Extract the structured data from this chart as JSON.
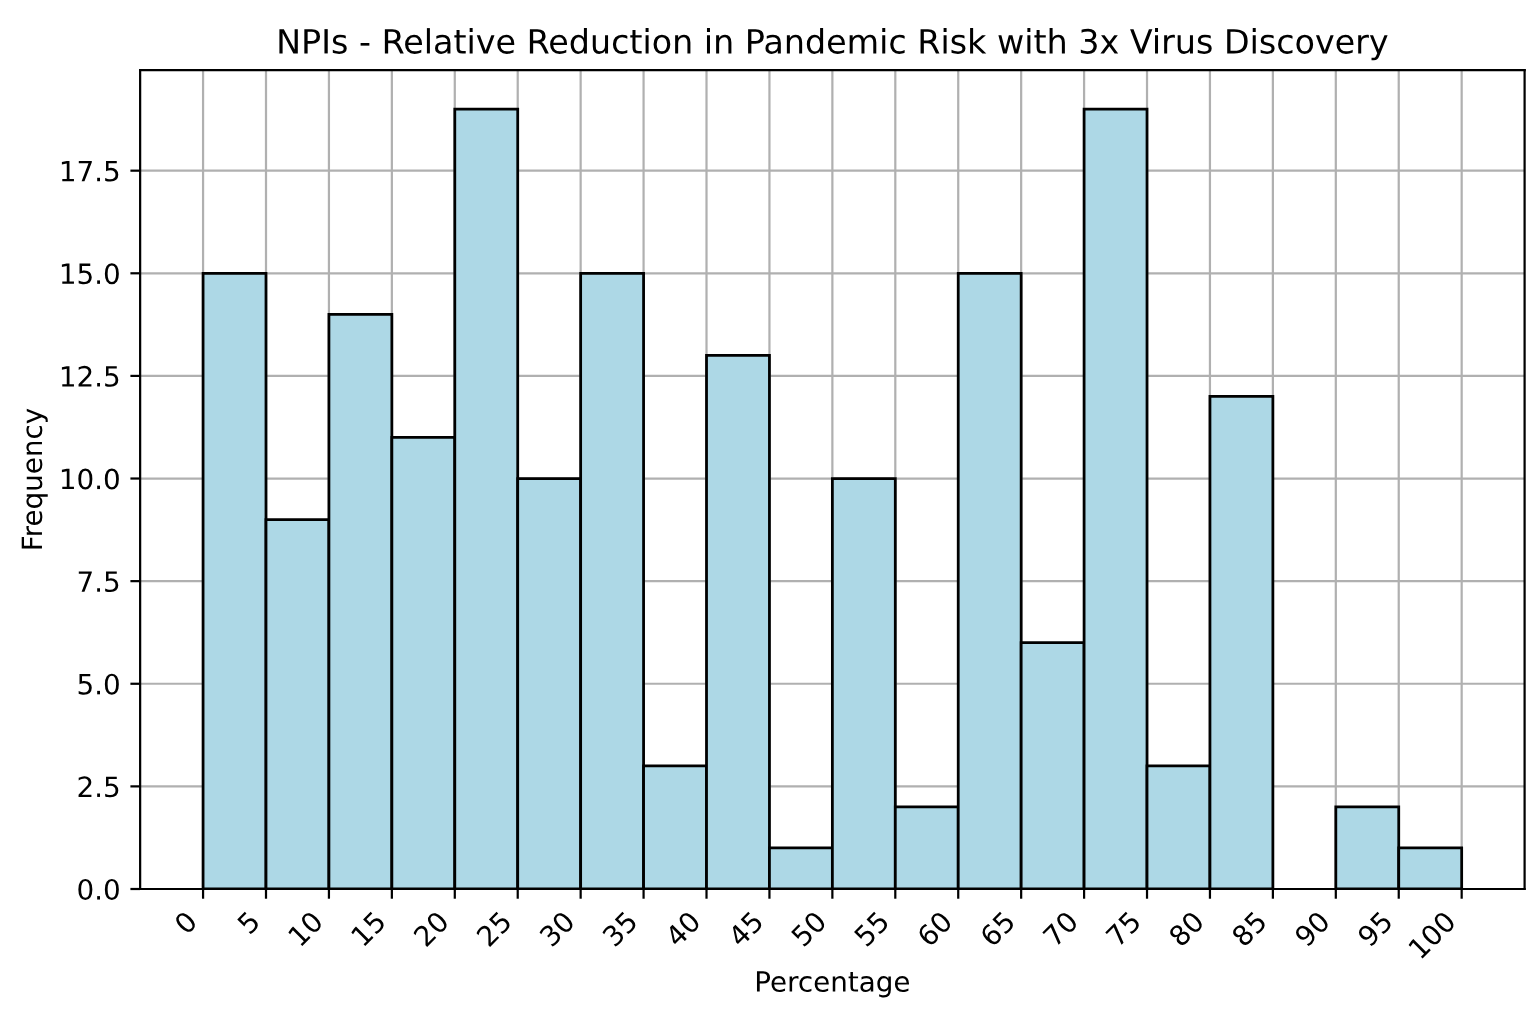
{
  "chart_data": {
    "type": "histogram",
    "title": "NPIs - Relative Reduction in Pandemic Risk with 3x Virus Discovery",
    "xlabel": "Percentage",
    "ylabel": "Frequency",
    "bins": [
      0,
      5,
      10,
      15,
      20,
      25,
      30,
      35,
      40,
      45,
      50,
      55,
      60,
      65,
      70,
      75,
      80,
      85,
      90,
      95,
      100
    ],
    "values": [
      15,
      9,
      14,
      11,
      19,
      10,
      15,
      3,
      13,
      1,
      10,
      2,
      15,
      6,
      19,
      3,
      12,
      0,
      2,
      1
    ],
    "color": "#add8e6",
    "xlim": [
      -5,
      105
    ],
    "xticks": [
      0,
      5,
      10,
      15,
      20,
      25,
      30,
      35,
      40,
      45,
      50,
      55,
      60,
      65,
      70,
      75,
      80,
      85,
      90,
      95,
      100
    ],
    "ylim": [
      0,
      19.95
    ],
    "yticks": [
      {
        "value": 0,
        "label": "0.0"
      },
      {
        "value": 2.5,
        "label": "2.5"
      },
      {
        "value": 5,
        "label": "5.0"
      },
      {
        "value": 7.5,
        "label": "7.5"
      },
      {
        "value": 10,
        "label": "10.0"
      },
      {
        "value": 12.5,
        "label": "12.5"
      },
      {
        "value": 15,
        "label": "15.0"
      },
      {
        "value": 17.5,
        "label": "17.5"
      }
    ],
    "grid": true
  }
}
